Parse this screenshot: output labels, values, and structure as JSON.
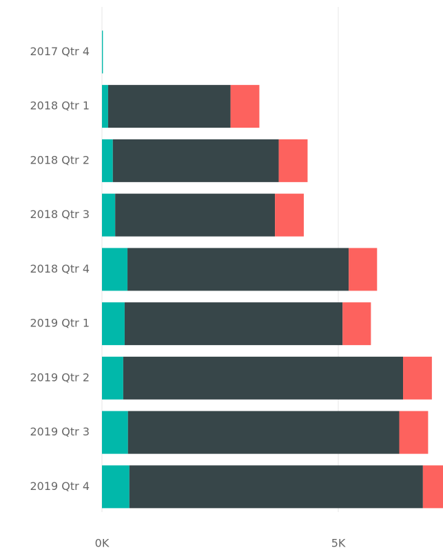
{
  "chart_data": {
    "type": "stacked_barh",
    "categories": [
      "2017 Qtr 4",
      "2018 Qtr 1",
      "2018 Qtr 2",
      "2018 Qtr 3",
      "2018 Qtr 4",
      "2019 Qtr 1",
      "2019 Qtr 2",
      "2019 Qtr 3",
      "2019 Qtr 4"
    ],
    "series": [
      {
        "color": "#01b8aa",
        "values": [
          20,
          130,
          230,
          280,
          540,
          480,
          450,
          550,
          580
        ]
      },
      {
        "color": "#374649",
        "values": [
          0,
          2590,
          3510,
          3380,
          4680,
          4610,
          5920,
          5740,
          6210
        ]
      },
      {
        "color": "#fd625e",
        "values": [
          0,
          610,
          610,
          610,
          600,
          600,
          610,
          610,
          600
        ]
      }
    ],
    "xlim": [
      0,
      7215
    ],
    "xticks": [
      {
        "value": 0,
        "label": "0K"
      },
      {
        "value": 5000,
        "label": "5K"
      }
    ],
    "grid": true
  }
}
